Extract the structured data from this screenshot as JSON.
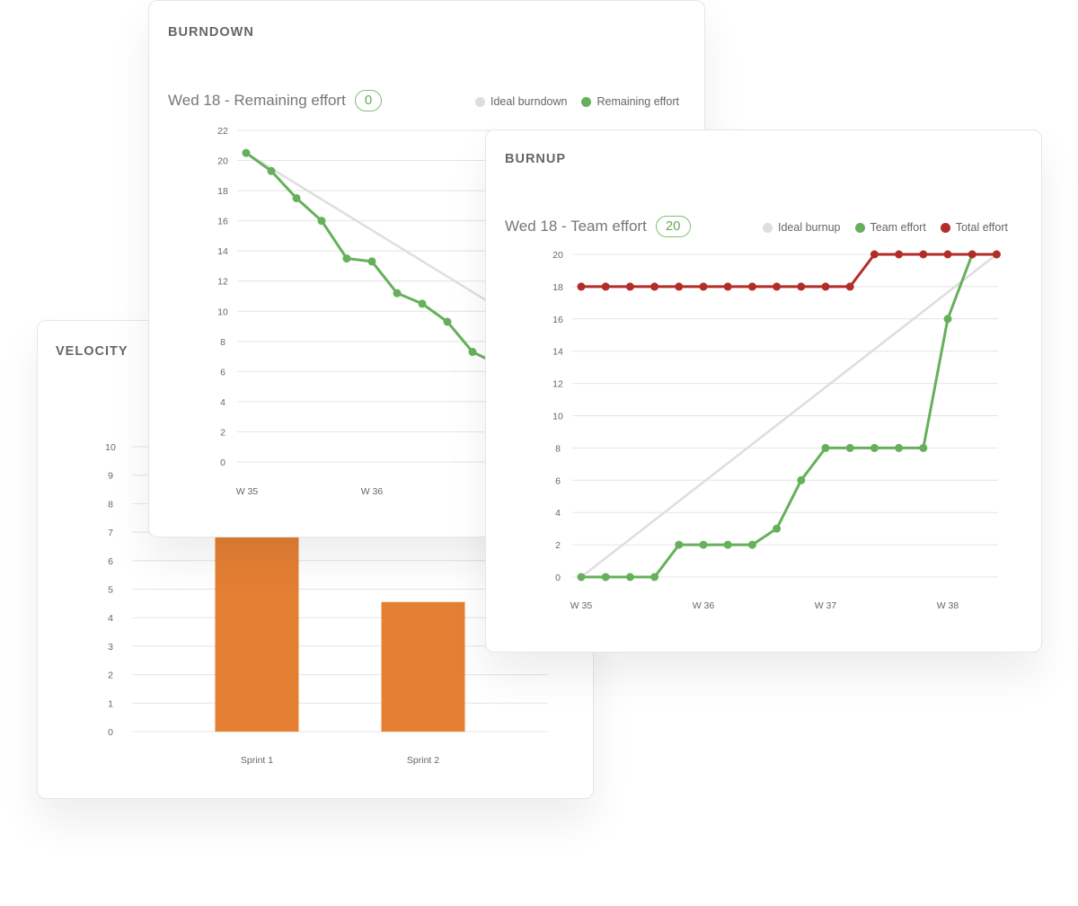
{
  "velocity": {
    "title": "VELOCITY",
    "chart_data": {
      "type": "bar",
      "categories": [
        "Sprint 1",
        "Sprint 2"
      ],
      "values": [
        6.9,
        4.55
      ],
      "ylim": [
        0,
        10
      ],
      "yticks": [
        0,
        1,
        2,
        3,
        4,
        5,
        6,
        7,
        8,
        9,
        10
      ],
      "grid": true,
      "colors": {
        "bar": "#e47f34",
        "grid": "#e4e4e4"
      }
    }
  },
  "burndown": {
    "title": "BURNDOWN",
    "header": {
      "label": "Wed 18 - Remaining effort",
      "badge": "0"
    },
    "legend": [
      {
        "label": "Ideal burndown",
        "color": "#dedede"
      },
      {
        "label": "Remaining effort",
        "color": "#66b05b"
      }
    ],
    "chart_data": {
      "type": "line",
      "ylim": [
        0,
        22
      ],
      "yticks": [
        0,
        2,
        4,
        6,
        8,
        10,
        12,
        14,
        16,
        18,
        20,
        22
      ],
      "xlabels": [
        "W 35",
        "W 36"
      ],
      "grid": true,
      "series": [
        {
          "name": "Ideal burndown",
          "color": "#dedede",
          "markers": false,
          "x": [
            0,
            20
          ],
          "values": [
            20.5,
            0
          ]
        },
        {
          "name": "Remaining effort",
          "color": "#66b05b",
          "markers": true,
          "x": [
            0,
            1,
            2,
            3,
            4,
            5,
            6,
            7,
            8,
            9,
            10
          ],
          "values": [
            20.5,
            19.3,
            17.5,
            16.0,
            13.5,
            13.3,
            11.2,
            10.5,
            9.3,
            7.3,
            6.5
          ]
        }
      ]
    }
  },
  "burnup": {
    "title": "BURNUP",
    "header": {
      "label": "Wed 18 - Team effort",
      "badge": "20"
    },
    "legend": [
      {
        "label": "Ideal burnup",
        "color": "#dedede"
      },
      {
        "label": "Team effort",
        "color": "#66b05b"
      },
      {
        "label": "Total effort",
        "color": "#b32d28"
      }
    ],
    "chart_data": {
      "type": "line",
      "ylim": [
        0,
        20
      ],
      "yticks": [
        0,
        2,
        4,
        6,
        8,
        10,
        12,
        14,
        16,
        18,
        20
      ],
      "xlabels": [
        "W 35",
        "W 36",
        "W 37",
        "W 38"
      ],
      "grid": true,
      "series": [
        {
          "name": "Ideal burnup",
          "color": "#dedede",
          "markers": false,
          "x": [
            0,
            17
          ],
          "values": [
            0,
            20
          ]
        },
        {
          "name": "Team effort",
          "color": "#66b05b",
          "markers": true,
          "x": [
            0,
            1,
            2,
            3,
            4,
            5,
            6,
            7,
            8,
            9,
            10,
            11,
            12,
            13,
            14,
            15,
            16,
            17
          ],
          "values": [
            0,
            0,
            0,
            0,
            2,
            2,
            2,
            2,
            3,
            6,
            8,
            8,
            8,
            8,
            8,
            16,
            20,
            20
          ]
        },
        {
          "name": "Total effort",
          "color": "#b32d28",
          "markers": true,
          "x": [
            0,
            1,
            2,
            3,
            4,
            5,
            6,
            7,
            8,
            9,
            10,
            11,
            12,
            13,
            14,
            15,
            16,
            17
          ],
          "values": [
            18,
            18,
            18,
            18,
            18,
            18,
            18,
            18,
            18,
            18,
            18,
            18,
            20,
            20,
            20,
            20,
            20,
            20
          ]
        }
      ]
    }
  }
}
